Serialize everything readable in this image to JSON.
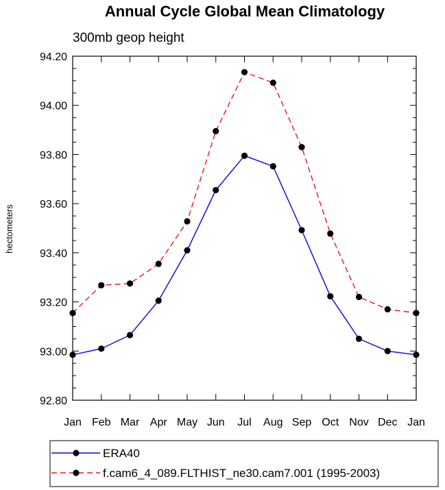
{
  "chart_data": {
    "type": "line",
    "title": "Annual Cycle Global Mean Climatology",
    "subtitle": "300mb geop height",
    "ylabel": "hectometers",
    "xlabel": "",
    "ylim": [
      92.8,
      94.2
    ],
    "yticks": [
      "92.80",
      "93.00",
      "93.20",
      "93.40",
      "93.60",
      "93.80",
      "94.00",
      "94.20"
    ],
    "categories": [
      "Jan",
      "Feb",
      "Mar",
      "Apr",
      "May",
      "Jun",
      "Jul",
      "Aug",
      "Sep",
      "Oct",
      "Nov",
      "Dec",
      "Jan"
    ],
    "grid": false,
    "legend_position": "bottom",
    "series": [
      {
        "name": "ERA40",
        "color": "#0000ee",
        "dash": "solid",
        "values": [
          92.985,
          93.01,
          93.065,
          93.205,
          93.41,
          93.655,
          93.795,
          93.752,
          93.492,
          93.223,
          93.05,
          93.0,
          92.985
        ]
      },
      {
        "name": "f.cam6_4_089.FLTHIST_ne30.cam7.001 (1995-2003)",
        "color": "#ee1111",
        "dash": "dashed",
        "values": [
          93.155,
          93.268,
          93.275,
          93.355,
          93.528,
          93.895,
          94.135,
          94.092,
          93.83,
          93.478,
          93.22,
          93.17,
          93.155
        ]
      }
    ]
  }
}
